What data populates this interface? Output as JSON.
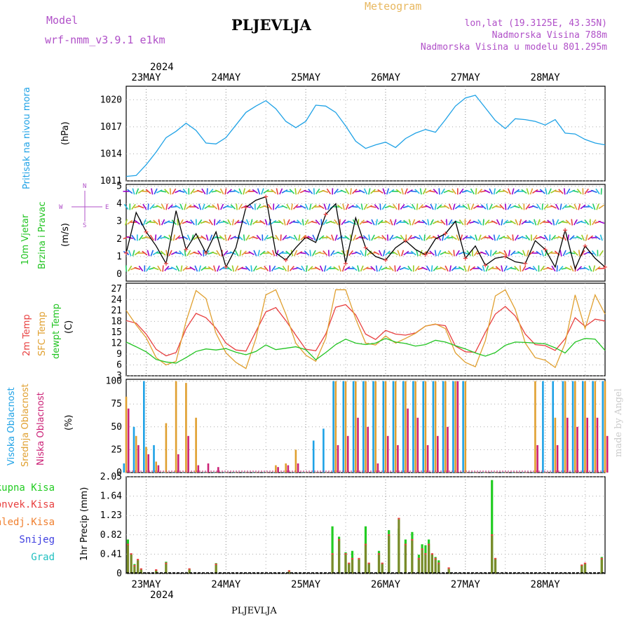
{
  "header": {
    "model_label": "Model",
    "model_name": "wrf-nmm_v3.9.1 e1km",
    "station": "PLJEVLJA",
    "title": "Meteogram",
    "lonlat": "lon,lat (19.3125E, 43.35N)",
    "altitude": "Nadmorska Visina 788m",
    "model_altitude": "Nadmorska Visina u modelu 801.295m"
  },
  "footer": {
    "station": "PLJEVLJA",
    "credit": "made by Angel"
  },
  "colors": {
    "pressure": "#1fa2e6",
    "wind_speed": "#000000",
    "temp2m": "#e84040",
    "sfc_temp": "#e0a030",
    "dewpt": "#22c422",
    "high_cloud": "#1fa2e6",
    "mid_cloud": "#e0a030",
    "low_cloud": "#cc2277",
    "total_precip": "#22cc22",
    "conv_precip": "#e84040",
    "strat_precip": "#f08030",
    "snow": "#4040e0",
    "hail": "#20c0c0"
  },
  "time_axis": {
    "year": "2024",
    "labels": [
      "23MAY",
      "24MAY",
      "25MAY",
      "26MAY",
      "27MAY",
      "28MAY"
    ],
    "start_hour": -6,
    "end_hour": 138
  },
  "chart_data": [
    {
      "type": "line",
      "id": "pressure",
      "ylabel": "Pritisak na nivou mora",
      "unit": "(hPa)",
      "ylim": [
        1011,
        1021.5
      ],
      "yticks": [
        "1011",
        "1014",
        "1017",
        "1020"
      ],
      "x": [
        -6,
        -3,
        0,
        3,
        6,
        9,
        12,
        15,
        18,
        21,
        24,
        27,
        30,
        33,
        36,
        39,
        42,
        45,
        48,
        51,
        54,
        57,
        60,
        63,
        66,
        69,
        72,
        75,
        78,
        81,
        84,
        87,
        90,
        93,
        96,
        99,
        102,
        105,
        108,
        111,
        114,
        117,
        120,
        123,
        126,
        129,
        132,
        135,
        138
      ],
      "values": [
        1011.5,
        1011.6,
        1012.8,
        1014.2,
        1015.8,
        1016.5,
        1017.4,
        1016.6,
        1015.2,
        1015.1,
        1015.8,
        1017.2,
        1018.6,
        1019.3,
        1019.9,
        1019.0,
        1017.6,
        1016.9,
        1017.6,
        1019.4,
        1019.3,
        1018.6,
        1017.1,
        1015.4,
        1014.6,
        1015.0,
        1015.3,
        1014.7,
        1015.7,
        1016.3,
        1016.7,
        1016.4,
        1017.8,
        1019.3,
        1020.2,
        1020.5,
        1019.1,
        1017.7,
        1016.8,
        1017.9,
        1017.8,
        1017.6,
        1017.2,
        1017.8,
        1016.3,
        1016.2,
        1015.6,
        1015.2,
        1015.0
      ]
    },
    {
      "type": "line",
      "id": "wind",
      "ylabel": "10m Vjetar Brzina i Pravac",
      "unit": "(m/s)",
      "compass": {
        "n": "N",
        "s": "S",
        "e": "E",
        "w": "W"
      },
      "ylim": [
        -0.4,
        5.1
      ],
      "yticks": [
        "0",
        "1",
        "2",
        "3",
        "4",
        "5"
      ],
      "x": [
        -6,
        -3,
        0,
        3,
        6,
        9,
        12,
        15,
        18,
        21,
        24,
        27,
        30,
        33,
        36,
        39,
        42,
        45,
        48,
        51,
        54,
        57,
        60,
        63,
        66,
        69,
        72,
        75,
        78,
        81,
        84,
        87,
        90,
        93,
        96,
        99,
        102,
        105,
        108,
        111,
        114,
        117,
        120,
        123,
        126,
        129,
        132,
        135,
        138
      ],
      "values": [
        1.2,
        3.5,
        2.4,
        1.6,
        0.6,
        3.6,
        1.4,
        2.3,
        1.2,
        2.4,
        0.4,
        1.5,
        3.8,
        4.2,
        4.4,
        1.2,
        0.8,
        1.5,
        2.1,
        1.8,
        3.4,
        4.0,
        0.6,
        3.2,
        1.5,
        1.0,
        0.8,
        1.5,
        1.9,
        1.4,
        1.1,
        2.0,
        2.3,
        3.0,
        0.9,
        1.6,
        0.5,
        0.9,
        1.0,
        0.7,
        0.6,
        1.9,
        1.4,
        0.4,
        2.5,
        0.3,
        1.6,
        0.9,
        0.4
      ]
    },
    {
      "type": "line",
      "id": "temperature",
      "ylabel": "2m Temp",
      "ylabel2": "SFC Temp",
      "ylabel3": "dewpt Temp",
      "unit": "(C)",
      "ylim": [
        3,
        28.5
      ],
      "yticks": [
        "3",
        "6",
        "9",
        "12",
        "15",
        "18",
        "21",
        "24",
        "27"
      ],
      "x": [
        -6,
        -3,
        0,
        3,
        6,
        9,
        12,
        15,
        18,
        21,
        24,
        27,
        30,
        33,
        36,
        39,
        42,
        45,
        48,
        51,
        54,
        57,
        60,
        63,
        66,
        69,
        72,
        75,
        78,
        81,
        84,
        87,
        90,
        93,
        96,
        99,
        102,
        105,
        108,
        111,
        114,
        117,
        120,
        123,
        126,
        129,
        132,
        135,
        138
      ],
      "series": [
        {
          "name": "2m Temp",
          "values": [
            18.2,
            17.5,
            14.5,
            10.3,
            8.5,
            9.4,
            16.0,
            20.2,
            19.0,
            16.1,
            12.0,
            10.1,
            9.8,
            15.2,
            20.6,
            21.8,
            18.2,
            14.2,
            10.3,
            9.9,
            14.5,
            21.9,
            22.6,
            19.8,
            14.5,
            13.0,
            15.5,
            14.5,
            14.2,
            14.8,
            16.7,
            17.2,
            16.8,
            11.2,
            9.6,
            9.5,
            15.0,
            20.0,
            22.1,
            19.5,
            14.5,
            11.6,
            11.3,
            10.0,
            13.2,
            19.0,
            16.6,
            18.6,
            18.1
          ]
        },
        {
          "name": "SFC Temp",
          "values": [
            21.0,
            17.0,
            13.5,
            8.0,
            6.0,
            7.0,
            18.0,
            26.5,
            24.3,
            14.7,
            9.3,
            6.7,
            5.0,
            13.3,
            25.3,
            26.7,
            20.0,
            12.0,
            8.7,
            7.0,
            13.3,
            26.7,
            26.7,
            18.7,
            12.0,
            11.5,
            14.0,
            12.0,
            13.3,
            14.7,
            16.7,
            17.3,
            16.0,
            9.3,
            6.7,
            5.5,
            12.7,
            25.0,
            26.7,
            21.3,
            12.0,
            8.0,
            7.3,
            5.3,
            12.0,
            25.3,
            16.0,
            25.3,
            20.0
          ]
        },
        {
          "name": "dewpt Temp",
          "values": [
            12.3,
            11.0,
            9.6,
            7.5,
            6.8,
            6.5,
            8.0,
            9.7,
            10.4,
            10.1,
            10.5,
            9.5,
            8.8,
            9.7,
            11.5,
            10.2,
            10.6,
            11.0,
            10.2,
            7.4,
            9.4,
            11.6,
            13.1,
            12.0,
            11.6,
            12.0,
            13.3,
            12.3,
            11.9,
            11.2,
            11.6,
            12.8,
            12.3,
            11.3,
            10.4,
            9.3,
            8.4,
            9.4,
            11.4,
            12.3,
            12.2,
            12.0,
            11.8,
            10.7,
            9.3,
            12.3,
            13.3,
            13.1,
            10.0
          ]
        }
      ]
    },
    {
      "type": "bar",
      "id": "clouds",
      "ylabel": "Visoka Oblacnost",
      "ylabel2": "Srednja Oblacnost",
      "ylabel3": "Niska Oblacnost",
      "unit": "(%)",
      "ylim": [
        0,
        102
      ],
      "yticks": [
        "0",
        "25",
        "50",
        "75",
        "100"
      ],
      "x": [
        -6,
        -3,
        0,
        3,
        6,
        9,
        12,
        15,
        18,
        21,
        24,
        27,
        30,
        33,
        36,
        39,
        42,
        45,
        48,
        51,
        54,
        57,
        60,
        63,
        66,
        69,
        72,
        75,
        78,
        81,
        84,
        87,
        90,
        93,
        96,
        99,
        102,
        105,
        108,
        111,
        114,
        117,
        120,
        123,
        126,
        129,
        132,
        135,
        138
      ],
      "series": [
        {
          "name": "Visoka Oblacnost",
          "values": [
            10,
            50,
            100,
            30,
            0,
            0,
            0,
            0,
            0,
            0,
            0,
            0,
            0,
            0,
            0,
            0,
            0,
            0,
            0,
            35,
            48,
            100,
            100,
            100,
            100,
            100,
            100,
            100,
            100,
            100,
            100,
            100,
            100,
            100,
            100,
            0,
            0,
            0,
            0,
            0,
            0,
            0,
            100,
            100,
            100,
            100,
            100,
            100,
            100
          ]
        },
        {
          "name": "Srednja Oblacnost",
          "values": [
            83,
            40,
            28,
            12,
            54,
            100,
            98,
            60,
            0,
            0,
            0,
            0,
            0,
            0,
            0,
            8,
            10,
            25,
            0,
            0,
            0,
            100,
            100,
            100,
            100,
            100,
            100,
            100,
            100,
            100,
            100,
            100,
            100,
            100,
            100,
            0,
            0,
            0,
            0,
            0,
            0,
            100,
            0,
            60,
            100,
            100,
            100,
            100,
            100
          ]
        },
        {
          "name": "Niska Oblacnost",
          "values": [
            70,
            30,
            20,
            8,
            0,
            20,
            40,
            8,
            10,
            6,
            0,
            0,
            0,
            0,
            0,
            6,
            8,
            10,
            0,
            0,
            0,
            30,
            40,
            60,
            50,
            10,
            40,
            30,
            70,
            60,
            30,
            40,
            50,
            100,
            0,
            0,
            0,
            0,
            0,
            0,
            0,
            30,
            0,
            30,
            60,
            50,
            60,
            60,
            40
          ]
        }
      ]
    },
    {
      "type": "bar",
      "id": "precip",
      "ylabel": "1hr Precip",
      "unit": "(mm)",
      "legend": [
        "Ukupna Kisa",
        "Konvek.Kisa",
        "Zaledj.Kisa",
        "Snijeg",
        "Grad"
      ],
      "ylim": [
        0,
        2.05
      ],
      "yticks": [
        "0",
        "0.41",
        "0.82",
        "1.23",
        "1.64",
        "2.05"
      ],
      "x": [
        -5.5,
        -4.5,
        -3.5,
        -2.5,
        -1.5,
        3,
        6,
        13,
        21,
        43,
        56,
        58,
        60,
        61,
        62,
        64,
        66,
        67,
        70,
        71,
        73,
        76,
        78,
        80,
        82,
        83,
        84,
        85,
        86,
        87,
        88,
        91,
        104,
        105,
        131,
        132,
        137
      ],
      "series": [
        {
          "name": "Ukupna Kisa",
          "values": [
            0.72,
            0.4,
            0.2,
            0.28,
            0.08,
            0.06,
            0.25,
            0.1,
            0.22,
            0.06,
            1.0,
            0.78,
            0.45,
            0.22,
            0.48,
            0.3,
            1.0,
            0.22,
            0.48,
            0.22,
            0.92,
            0.95,
            0.72,
            0.88,
            0.4,
            0.62,
            0.6,
            0.72,
            0.42,
            0.35,
            0.28,
            0.1,
            1.98,
            0.32,
            0.18,
            0.22,
            0.35
          ]
        },
        {
          "name": "Konvek.Kisa",
          "values": [
            0.6,
            0.4,
            0.15,
            0.28,
            0.08,
            0.06,
            0.2,
            0.08,
            0.18,
            0.04,
            0.4,
            0.7,
            0.4,
            0.2,
            0.3,
            0.3,
            0.6,
            0.2,
            0.4,
            0.2,
            0.8,
            1.15,
            0.6,
            0.7,
            0.3,
            0.5,
            0.4,
            0.6,
            0.4,
            0.3,
            0.2,
            0.1,
            0.8,
            0.3,
            0.16,
            0.2,
            0.3
          ]
        }
      ]
    }
  ]
}
